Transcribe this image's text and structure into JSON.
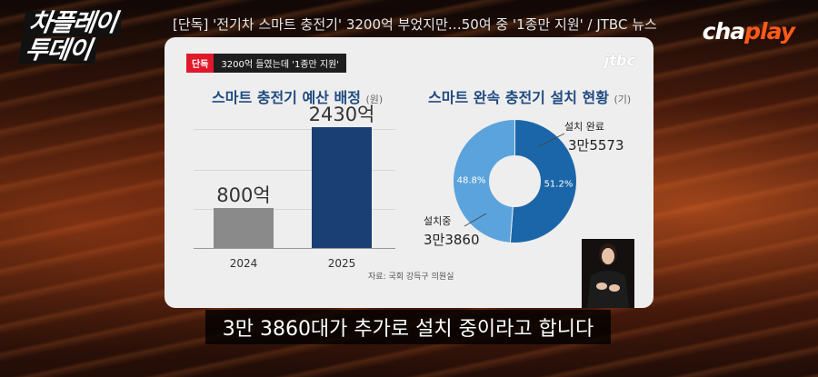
{
  "channel_logo_left": [
    "차플레이",
    "투데이"
  ],
  "headline": "[단독] '전기차 스마트 충전기' 3200억 부었지만…50여 중 '1종만 지원' / JTBC 뉴스",
  "channel_logo_right": {
    "part1": "cha",
    "part2": "play"
  },
  "card": {
    "tag_exclusive": "단독",
    "tag_subtitle": "3200억 들였는데 '1종만 지원'",
    "broadcaster_logo": "jtbc",
    "source": "자료: 국회 강득구 의원실"
  },
  "chart_data": [
    {
      "type": "bar",
      "title": "스마트 충전기 예산 배정",
      "unit": "(원)",
      "categories": [
        "2024",
        "2025"
      ],
      "values": [
        800,
        2430
      ],
      "value_labels": [
        "800억",
        "2430억"
      ],
      "colors": [
        "#8a8a8a",
        "#1a3f75"
      ],
      "ylim": [
        0,
        2600
      ],
      "grid": true
    },
    {
      "type": "pie",
      "title": "스마트 완속 충전기 설치 현황",
      "unit": "(기)",
      "slices": [
        {
          "label": "설치 완료",
          "value": 35573,
          "value_label": "3만5573",
          "percent": 51.2,
          "percent_label": "51.2%",
          "color": "#1a66a8"
        },
        {
          "label": "설치중",
          "value": 33860,
          "value_label": "3만3860",
          "percent": 48.8,
          "percent_label": "48.8%",
          "color": "#5ba3dc"
        }
      ]
    }
  ],
  "subtitle": "3만 3860대가 추가로 설치 중이라고 합니다"
}
